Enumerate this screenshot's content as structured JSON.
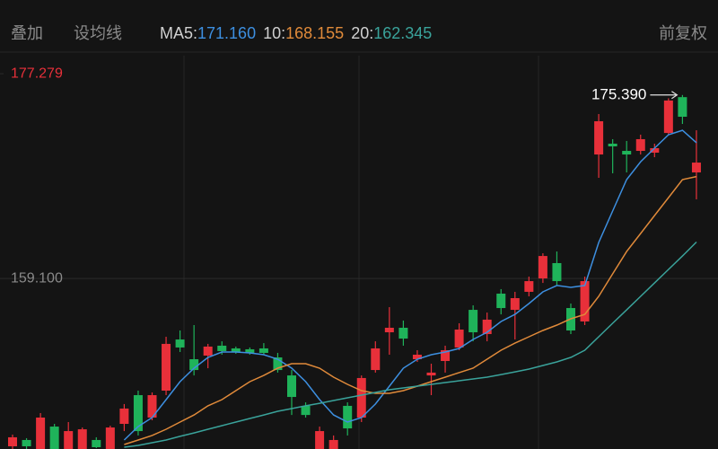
{
  "header": {
    "overlay": "叠加",
    "set_ma": "设均线",
    "adjust": "前复权"
  },
  "chart_data": {
    "type": "candlestick",
    "up_color": "#e8303a",
    "down_color": "#1fb35a",
    "ylim": [
      143.97,
      178.88
    ],
    "yticks": [
      177.279,
      {
        "value": 159.1,
        "label": "159.100"
      }
    ],
    "max_label": "175.390",
    "candles": {
      "open": [
        144.21,
        144.77,
        143.97,
        145.96,
        143.97,
        143.97,
        144.77,
        143.97,
        146.2,
        148.75,
        146.76,
        149.15,
        153.69,
        151.94,
        152.26,
        153.14,
        152.9,
        152.82,
        152.9,
        152.1,
        150.5,
        147.8,
        143.97,
        143.97,
        147.8,
        146.76,
        150.98,
        154.33,
        154.73,
        151.94,
        150.5,
        151.78,
        152.98,
        156.32,
        154.17,
        157.76,
        156.32,
        157.92,
        159.11,
        160.47,
        156.48,
        155.29,
        170.11,
        171.07,
        170.43,
        170.43,
        170.27,
        172.02,
        175.2,
        168.52
      ],
      "close": [
        145.01,
        144.21,
        146.76,
        143.97,
        145.56,
        145.72,
        144.13,
        145.88,
        147.56,
        145.56,
        148.75,
        153.3,
        152.98,
        150.98,
        153.06,
        152.66,
        152.58,
        152.5,
        152.5,
        150.98,
        148.59,
        146.99,
        145.56,
        144.77,
        145.8,
        150.27,
        152.9,
        154.73,
        153.77,
        152.34,
        150.75,
        152.74,
        154.57,
        154.33,
        155.45,
        156.48,
        157.36,
        158.87,
        161.1,
        158.87,
        154.49,
        158.87,
        173.06,
        170.83,
        170.11,
        171.47,
        170.67,
        174.9,
        173.46,
        169.39
      ],
      "high": [
        145.25,
        144.93,
        147.16,
        146.2,
        146.36,
        145.88,
        145.01,
        146.04,
        147.96,
        149.15,
        148.99,
        153.93,
        154.49,
        154.97,
        153.3,
        153.53,
        153.06,
        152.98,
        153.37,
        152.5,
        150.98,
        148.11,
        145.96,
        145.17,
        148.11,
        150.5,
        153.53,
        156.56,
        155.37,
        152.74,
        151.54,
        153.14,
        155.13,
        156.72,
        156.08,
        158.16,
        157.92,
        159.27,
        161.34,
        161.5,
        156.88,
        159.27,
        173.7,
        171.47,
        171.31,
        171.87,
        171.07,
        175.1,
        175.39,
        172.26
      ],
      "low": [
        143.97,
        143.97,
        143.97,
        143.97,
        143.97,
        143.97,
        144.05,
        143.97,
        145.56,
        145.17,
        146.52,
        148.75,
        152.58,
        150.5,
        151.14,
        152.34,
        152.42,
        152.34,
        152.34,
        150.75,
        146.99,
        146.76,
        143.97,
        143.97,
        145.17,
        146.36,
        150.75,
        152.34,
        153.14,
        151.7,
        148.75,
        150.75,
        152.74,
        153.53,
        153.53,
        155.92,
        153.69,
        157.52,
        158.71,
        158.48,
        154.17,
        154.97,
        168.04,
        168.44,
        168.52,
        170.11,
        169.87,
        171.87,
        172.82,
        166.13
      ]
    },
    "series": [
      {
        "name": "MA5:",
        "color": "#3d8fe0",
        "last_label": "171.160",
        "values": [
          null,
          null,
          null,
          null,
          null,
          null,
          null,
          null,
          144.77,
          145.96,
          146.76,
          148.35,
          149.95,
          151.14,
          152.1,
          152.58,
          152.58,
          152.5,
          152.34,
          151.94,
          151.14,
          149.95,
          148.35,
          146.99,
          146.36,
          146.76,
          147.96,
          149.55,
          151.14,
          151.94,
          152.34,
          152.58,
          152.9,
          153.69,
          154.33,
          155.29,
          155.92,
          156.88,
          157.92,
          158.48,
          158.32,
          158.48,
          162.3,
          165.09,
          167.88,
          169.47,
          170.67,
          171.87,
          172.26,
          171.16
        ]
      },
      {
        "name": "10:",
        "color": "#e08a3a",
        "last_label": "168.155",
        "values": [
          null,
          null,
          null,
          null,
          null,
          null,
          null,
          null,
          144.37,
          144.77,
          145.17,
          145.72,
          146.36,
          146.99,
          147.8,
          148.35,
          149.15,
          149.95,
          150.5,
          151.14,
          151.54,
          151.54,
          151.14,
          150.35,
          149.71,
          149.15,
          148.91,
          148.91,
          149.15,
          149.55,
          149.95,
          150.35,
          150.75,
          151.14,
          151.94,
          152.74,
          153.37,
          153.93,
          154.49,
          154.97,
          155.53,
          155.92,
          157.52,
          159.51,
          161.5,
          163.1,
          164.69,
          166.29,
          167.88,
          168.155
        ]
      },
      {
        "name": "20:",
        "color": "#3aa39b",
        "last_label": "162.345",
        "values": [
          null,
          null,
          null,
          null,
          null,
          null,
          null,
          null,
          144.13,
          144.29,
          144.53,
          144.77,
          145.09,
          145.4,
          145.72,
          146.04,
          146.36,
          146.68,
          146.99,
          147.32,
          147.56,
          147.8,
          148.03,
          148.27,
          148.51,
          148.75,
          148.99,
          149.23,
          149.39,
          149.55,
          149.71,
          149.87,
          150.03,
          150.19,
          150.35,
          150.58,
          150.82,
          151.06,
          151.38,
          151.7,
          152.1,
          152.74,
          153.93,
          155.13,
          156.32,
          157.52,
          158.71,
          159.91,
          161.1,
          162.345
        ]
      }
    ]
  }
}
